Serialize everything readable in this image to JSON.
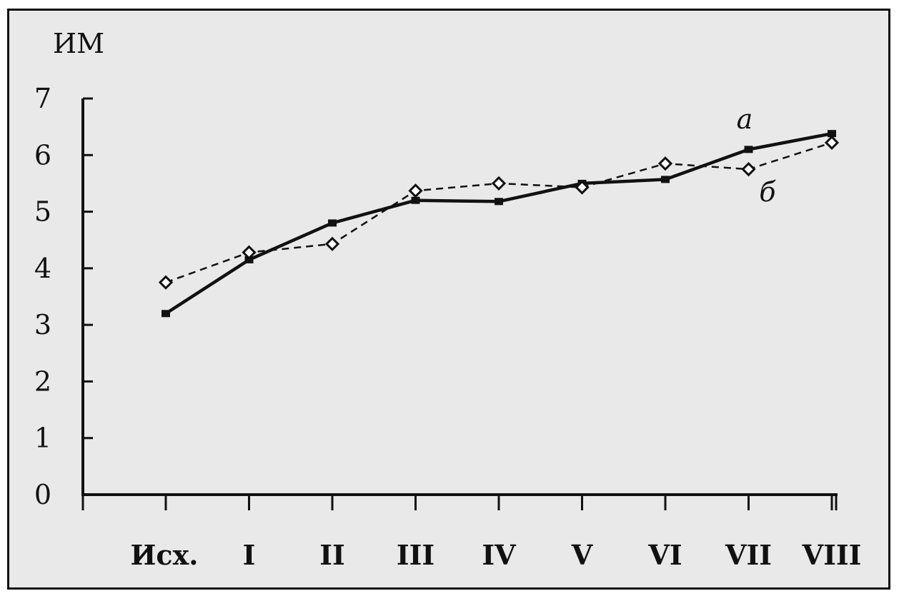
{
  "chart_data": {
    "type": "line",
    "ylabel": "ИМ",
    "ylim": [
      0,
      7
    ],
    "yticks": [
      "0",
      "1",
      "2",
      "3",
      "4",
      "5",
      "6",
      "7"
    ],
    "categories": [
      "Исх.",
      "I",
      "II",
      "III",
      "IV",
      "V",
      "VI",
      "VII",
      "VIII"
    ],
    "grid": false,
    "series": [
      {
        "name": "а",
        "style": "solid",
        "marker": "square",
        "values": [
          3.2,
          4.15,
          4.8,
          5.2,
          5.18,
          5.5,
          5.57,
          6.1,
          6.38
        ]
      },
      {
        "name": "б",
        "style": "dashed",
        "marker": "diamond",
        "values": [
          3.75,
          4.28,
          4.43,
          5.37,
          5.5,
          5.43,
          5.85,
          5.75,
          6.22
        ]
      }
    ],
    "colors": {
      "ink": "#111111",
      "marker_fill": "#ffffff"
    }
  }
}
